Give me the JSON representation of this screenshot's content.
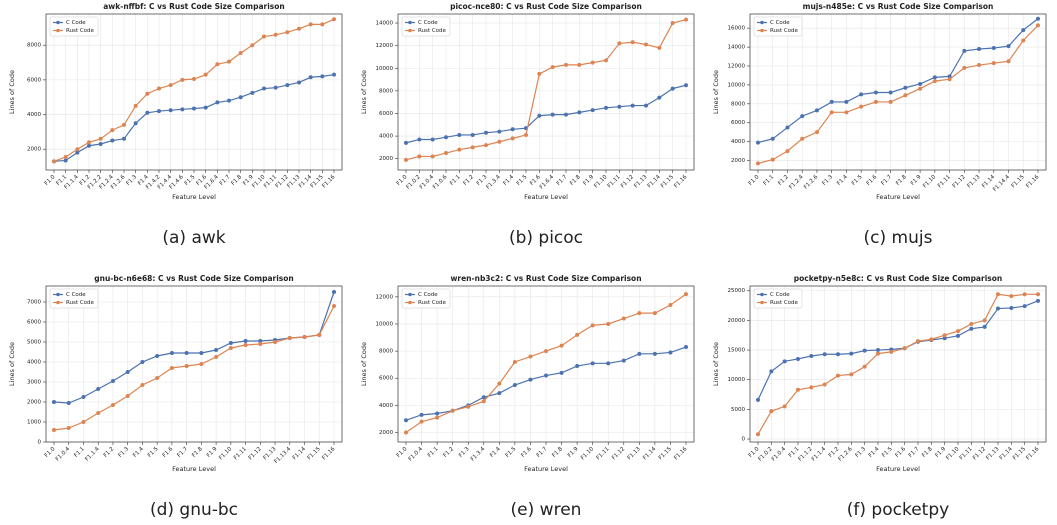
{
  "chart_data": [
    {
      "type": "line",
      "title": "awk-nffbf: C vs Rust Code Size Comparison",
      "caption": "(a) awk",
      "x_label": "Feature Level",
      "y_label": "Lines of Code",
      "legend": "upper left",
      "grid": true,
      "categories": [
        "F1.0",
        "F1.1",
        "F1.1.4",
        "F1.2",
        "F1.2.2",
        "F1.2.4",
        "F1.2.6",
        "F1.3",
        "F1.4",
        "F1.4.2",
        "F1.4.4",
        "F1.4.6",
        "F1.5",
        "F1.6",
        "F1.6.4",
        "F1.7",
        "F1.8",
        "F1.9",
        "F1.10",
        "F1.11",
        "F1.12",
        "F1.13",
        "F1.14",
        "F1.15",
        "F1.16"
      ],
      "series": [
        {
          "name": "C Code",
          "color": "#4c72b0",
          "values": [
            1300,
            1350,
            1800,
            2200,
            2300,
            2500,
            2600,
            3500,
            4100,
            4200,
            4250,
            4300,
            4350,
            4400,
            4700,
            4800,
            5000,
            5250,
            5500,
            5550,
            5700,
            5850,
            6150,
            6200,
            6300
          ]
        },
        {
          "name": "Rust Code",
          "color": "#dd8452",
          "values": [
            1300,
            1550,
            2000,
            2400,
            2600,
            3100,
            3400,
            4500,
            5200,
            5500,
            5700,
            6000,
            6050,
            6300,
            6900,
            7050,
            7550,
            8000,
            8500,
            8600,
            8750,
            8950,
            9200,
            9200,
            9500
          ]
        }
      ],
      "ylim": [
        800,
        9800
      ],
      "yticks": [
        2000,
        4000,
        6000,
        8000
      ]
    },
    {
      "type": "line",
      "title": "picoc-nce80: C vs Rust Code Size Comparison",
      "caption": "(b) picoc",
      "x_label": "Feature Level",
      "y_label": "Lines of Code",
      "legend": "upper left",
      "grid": true,
      "categories": [
        "F1.0",
        "F1.0.2",
        "F1.0.4",
        "F1.0.6",
        "F1.1",
        "F1.2",
        "F1.3",
        "F1.3.4",
        "F1.4",
        "F1.5",
        "F1.6",
        "F1.6.4",
        "F1.7",
        "F1.8",
        "F1.9",
        "F1.10",
        "F1.11",
        "F1.12",
        "F1.13",
        "F1.14",
        "F1.15",
        "F1.16"
      ],
      "series": [
        {
          "name": "C Code",
          "color": "#4c72b0",
          "values": [
            3400,
            3700,
            3700,
            3900,
            4100,
            4100,
            4300,
            4400,
            4600,
            4700,
            5800,
            5900,
            5900,
            6100,
            6300,
            6500,
            6600,
            6700,
            6700,
            7400,
            8200,
            8500
          ]
        },
        {
          "name": "Rust Code",
          "color": "#dd8452",
          "values": [
            1900,
            2200,
            2200,
            2500,
            2800,
            3000,
            3200,
            3500,
            3800,
            4100,
            9500,
            10100,
            10300,
            10300,
            10500,
            10700,
            12200,
            12300,
            12100,
            11800,
            14000,
            14300
          ]
        }
      ],
      "ylim": [
        1000,
        14800
      ],
      "yticks": [
        2000,
        4000,
        6000,
        8000,
        10000,
        12000,
        14000
      ]
    },
    {
      "type": "line",
      "title": "mujs-n485e: C vs Rust Code Size Comparison",
      "caption": "(c) mujs",
      "x_label": "Feature Level",
      "y_label": "Lines of Code",
      "legend": "upper left",
      "grid": true,
      "categories": [
        "F1.0",
        "F1.1",
        "F1.2",
        "F1.2.4",
        "F1.2.6",
        "F1.3",
        "F1.4",
        "F1.5",
        "F1.6",
        "F1.7",
        "F1.8",
        "F1.9",
        "F1.10",
        "F1.11",
        "F1.12",
        "F1.13",
        "F1.14",
        "F1.14.4",
        "F1.15",
        "F1.16"
      ],
      "series": [
        {
          "name": "C Code",
          "color": "#4c72b0",
          "values": [
            3900,
            4300,
            5500,
            6700,
            7300,
            8200,
            8200,
            9000,
            9200,
            9200,
            9700,
            10100,
            10800,
            10900,
            13600,
            13800,
            13900,
            14100,
            15800,
            17000
          ]
        },
        {
          "name": "Rust Code",
          "color": "#dd8452",
          "values": [
            1700,
            2100,
            3000,
            4300,
            5000,
            7100,
            7100,
            7700,
            8200,
            8200,
            8900,
            9600,
            10400,
            10600,
            11800,
            12100,
            12300,
            12500,
            14700,
            16300
          ]
        }
      ],
      "ylim": [
        1000,
        17500
      ],
      "yticks": [
        2000,
        4000,
        6000,
        8000,
        10000,
        12000,
        14000,
        16000
      ]
    },
    {
      "type": "line",
      "title": "gnu-bc-n6e68: C vs Rust Code Size Comparison",
      "caption": "(d) gnu-bc",
      "x_label": "Feature Level",
      "y_label": "Lines of Code",
      "legend": "upper left",
      "grid": true,
      "categories": [
        "F1.0",
        "F1.0.4",
        "F1.1",
        "F1.1.4",
        "F1.2",
        "F1.3",
        "F1.4",
        "F1.5",
        "F1.6",
        "F1.7",
        "F1.8",
        "F1.9",
        "F1.10",
        "F1.11",
        "F1.12",
        "F1.13",
        "F1.13.4",
        "F1.14",
        "F1.15",
        "F1.16"
      ],
      "series": [
        {
          "name": "C Code",
          "color": "#4c72b0",
          "values": [
            2000,
            1950,
            2250,
            2650,
            3050,
            3500,
            4000,
            4300,
            4450,
            4450,
            4450,
            4600,
            4950,
            5050,
            5050,
            5100,
            5200,
            5250,
            5350,
            7500
          ]
        },
        {
          "name": "Rust Code",
          "color": "#dd8452",
          "values": [
            600,
            700,
            1000,
            1450,
            1850,
            2300,
            2850,
            3200,
            3700,
            3800,
            3900,
            4250,
            4700,
            4850,
            4900,
            5000,
            5200,
            5250,
            5350,
            6800
          ]
        }
      ],
      "ylim": [
        0,
        7800
      ],
      "yticks": [
        0,
        1000,
        2000,
        3000,
        4000,
        5000,
        6000,
        7000
      ]
    },
    {
      "type": "line",
      "title": "wren-nb3c2: C vs Rust Code Size Comparison",
      "caption": "(e) wren",
      "x_label": "Feature Level",
      "y_label": "Lines of Code",
      "legend": "upper left",
      "grid": true,
      "categories": [
        "F1.0",
        "F1.0.4",
        "F1.1",
        "F1.2",
        "F1.3",
        "F1.3.4",
        "F1.4",
        "F1.5",
        "F1.6",
        "F1.7",
        "F1.8",
        "F1.9",
        "F1.10",
        "F1.11",
        "F1.12",
        "F1.13",
        "F1.14",
        "F1.15",
        "F1.16"
      ],
      "series": [
        {
          "name": "C Code",
          "color": "#4c72b0",
          "values": [
            2900,
            3300,
            3400,
            3600,
            4000,
            4600,
            4900,
            5500,
            5900,
            6200,
            6400,
            6900,
            7100,
            7100,
            7300,
            7800,
            7800,
            7900,
            8300
          ]
        },
        {
          "name": "Rust Code",
          "color": "#dd8452",
          "values": [
            2000,
            2800,
            3100,
            3600,
            3900,
            4300,
            5600,
            7200,
            7600,
            8000,
            8400,
            9200,
            9900,
            10000,
            10400,
            10800,
            10800,
            11400,
            12200
          ]
        }
      ],
      "ylim": [
        1300,
        12800
      ],
      "yticks": [
        2000,
        4000,
        6000,
        8000,
        10000,
        12000
      ]
    },
    {
      "type": "line",
      "title": "pocketpy-n5e8c: C vs Rust Code Size Comparison",
      "caption": "(f) pocketpy",
      "x_label": "Feature Level",
      "y_label": "Lines of Code",
      "legend": "upper left",
      "grid": true,
      "categories": [
        "F1.0",
        "F1.0.2",
        "F1.0.4",
        "F1.1",
        "F1.1.2",
        "F1.1.4",
        "F1.2",
        "F1.2.6",
        "F1.3",
        "F1.4",
        "F1.5",
        "F1.6",
        "F1.7",
        "F1.8",
        "F1.9",
        "F1.10",
        "F1.11",
        "F1.12",
        "F1.13",
        "F1.14",
        "F1.15",
        "F1.16"
      ],
      "series": [
        {
          "name": "C Code",
          "color": "#4c72b0",
          "values": [
            6600,
            11400,
            13100,
            13500,
            14000,
            14300,
            14300,
            14400,
            14900,
            15000,
            15100,
            15300,
            16400,
            16700,
            17000,
            17400,
            18600,
            18900,
            22000,
            22100,
            22400,
            23300
          ]
        },
        {
          "name": "Rust Code",
          "color": "#dd8452",
          "values": [
            800,
            4700,
            5500,
            8300,
            8700,
            9200,
            10700,
            10900,
            12200,
            14400,
            14700,
            15300,
            16500,
            16800,
            17500,
            18200,
            19400,
            20000,
            24400,
            24100,
            24400,
            24400
          ]
        }
      ],
      "ylim": [
        -500,
        25800
      ],
      "yticks": [
        0,
        5000,
        10000,
        15000,
        20000,
        25000
      ]
    }
  ]
}
